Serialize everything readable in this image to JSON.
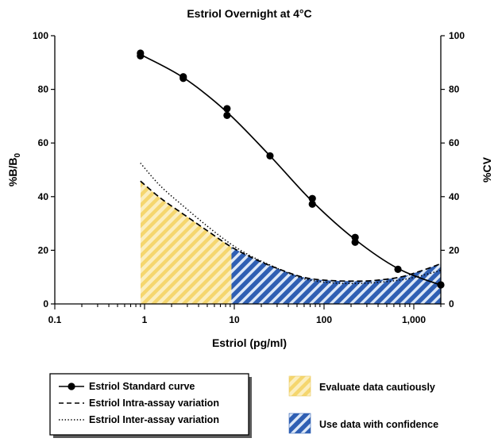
{
  "chart_data": {
    "type": "line",
    "title": "Estriol Overnight at 4°C",
    "xlabel": "Estriol (pg/ml)",
    "ylabel_main": "%B/B",
    "ylabel_sub": "0",
    "ylabel_right": "%CV",
    "x_scale": "log",
    "xlim": [
      0.1,
      2000
    ],
    "ylim": [
      0,
      100
    ],
    "x_ticks": [
      {
        "value": 0.1,
        "label": "0.1"
      },
      {
        "value": 1,
        "label": "1"
      },
      {
        "value": 10,
        "label": "10"
      },
      {
        "value": 100,
        "label": "100"
      },
      {
        "value": 1000,
        "label": "1,000"
      }
    ],
    "y_ticks": [
      0,
      20,
      40,
      60,
      80,
      100
    ],
    "y_tick_labels": [
      "0",
      "20",
      "40",
      "60",
      "80",
      "100"
    ],
    "grid": false,
    "series": [
      {
        "name": "Estriol Standard curve",
        "style": "line-markers",
        "axis": "left",
        "x": [
          0.9,
          0.9,
          2.7,
          2.7,
          8.3,
          8.3,
          25,
          74,
          74,
          222,
          222,
          666,
          2000
        ],
        "y": [
          93.5,
          92.5,
          84.7,
          84.1,
          72.8,
          70.3,
          55.2,
          39.3,
          37.2,
          24.8,
          23.0,
          12.9,
          7.1
        ],
        "curve_x": [
          0.9,
          2.7,
          8.3,
          25,
          74,
          222,
          666,
          2000
        ],
        "curve_y": [
          93,
          84.4,
          71.5,
          55.2,
          38.2,
          24.0,
          13.2,
          7.0
        ]
      },
      {
        "name": "Estriol Intra-assay variation",
        "style": "dashed",
        "axis": "right",
        "x": [
          0.9,
          1.5,
          2.7,
          5,
          9,
          15,
          25,
          50,
          75,
          120,
          200,
          350,
          700,
          1200,
          2000
        ],
        "y": [
          45.8,
          39.5,
          33.5,
          27.3,
          21.5,
          17.6,
          14.3,
          10.6,
          9.3,
          8.7,
          8.5,
          8.7,
          10.0,
          12.3,
          15.0
        ]
      },
      {
        "name": "Estriol Inter-assay variation",
        "style": "dotted",
        "axis": "right",
        "x": [
          0.9,
          1.5,
          2.7,
          5,
          9,
          15,
          25,
          50,
          75,
          120,
          200,
          350,
          700,
          1200,
          2000
        ],
        "y": [
          52.5,
          44.0,
          36.5,
          29.0,
          22.5,
          18.0,
          14.5,
          10.2,
          8.7,
          7.9,
          7.6,
          7.9,
          8.9,
          10.5,
          12.5
        ]
      }
    ],
    "regions": [
      {
        "name": "Evaluate data cautiously",
        "x_from": 0.9,
        "x_to": 9.3,
        "color": "#f5d66e",
        "fill": "hatched",
        "bound_series": "Estriol Intra-assay variation"
      },
      {
        "name": "Use data with confidence",
        "x_from": 9.3,
        "x_to": 2000,
        "color": "#2f5fb3",
        "fill": "hatched",
        "bound_series": "Estriol Intra-assay variation"
      }
    ],
    "legend": {
      "placement": "bottom",
      "series_entries": [
        "Estriol Standard curve",
        "Estriol Intra-assay variation",
        "Estriol Inter-assay variation"
      ],
      "region_entries": [
        "Evaluate data cautiously",
        "Use data with confidence"
      ]
    }
  },
  "colors": {
    "caution": "#f5d66e",
    "confidence": "#2f5fb3",
    "stroke": "#000000"
  }
}
